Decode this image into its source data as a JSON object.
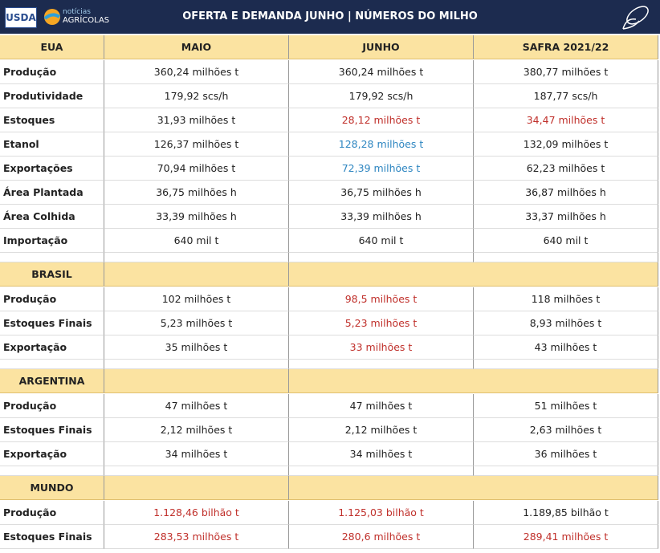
{
  "header": {
    "title": "OFERTA E DEMANDA JUNHO | NÚMEROS DO MILHO",
    "logo_usda": "USDA",
    "logo_na_top": "notícias",
    "logo_na_bottom": "AGRÍCOLAS"
  },
  "columns": [
    "MAIO",
    "JUNHO",
    "SAFRA 2021/22"
  ],
  "sections": [
    {
      "label": "EUA",
      "rows": [
        {
          "label": "Produção",
          "cells": [
            {
              "text": "360,24 milhões t"
            },
            {
              "text": "360,24 milhões t"
            },
            {
              "text": "380,77 milhões t"
            }
          ]
        },
        {
          "label": "Produtividade",
          "cells": [
            {
              "text": "179,92 scs/h"
            },
            {
              "text": "179,92 scs/h"
            },
            {
              "text": "187,77 scs/h"
            }
          ]
        },
        {
          "label": "Estoques",
          "cells": [
            {
              "text": "31,93 milhões t"
            },
            {
              "text": "28,12 milhões t",
              "color": "#c0302b"
            },
            {
              "text": "34,47 milhões t",
              "color": "#c0302b"
            }
          ]
        },
        {
          "label": "Etanol",
          "cells": [
            {
              "text": "126,37 milhões t"
            },
            {
              "text": "128,28 milhões t",
              "color": "#2e86c1"
            },
            {
              "text": "132,09 milhões t"
            }
          ]
        },
        {
          "label": "Exportações",
          "cells": [
            {
              "text": "70,94 milhões t"
            },
            {
              "text": "72,39 milhões t",
              "color": "#2e86c1"
            },
            {
              "text": "62,23 milhões t"
            }
          ]
        },
        {
          "label": "Área Plantada",
          "cells": [
            {
              "text": "36,75 milhões h"
            },
            {
              "text": "36,75 milhões h"
            },
            {
              "text": "36,87 milhões h"
            }
          ]
        },
        {
          "label": "Área Colhida",
          "cells": [
            {
              "text": "33,39 milhões h"
            },
            {
              "text": "33,39 milhões h"
            },
            {
              "text": "33,37 milhões h"
            }
          ]
        },
        {
          "label": "Importação",
          "cells": [
            {
              "text": "640 mil t"
            },
            {
              "text": "640 mil t"
            },
            {
              "text": "640 mil t"
            }
          ]
        }
      ]
    },
    {
      "label": "BRASIL",
      "rows": [
        {
          "label": "Produção",
          "cells": [
            {
              "text": "102 milhões t"
            },
            {
              "text": "98,5 milhões t",
              "color": "#c0302b"
            },
            {
              "text": "118 milhões t"
            }
          ]
        },
        {
          "label": "Estoques Finais",
          "cells": [
            {
              "text": "5,23 milhões t"
            },
            {
              "text": "5,23 milhões t",
              "color": "#c0302b"
            },
            {
              "text": "8,93 milhões t"
            }
          ]
        },
        {
          "label": "Exportação",
          "cells": [
            {
              "text": "35 milhões t"
            },
            {
              "text": "33 milhões t",
              "color": "#c0302b"
            },
            {
              "text": "43 milhões t"
            }
          ]
        }
      ]
    },
    {
      "label": "ARGENTINA",
      "rows": [
        {
          "label": "Produção",
          "cells": [
            {
              "text": "47 milhões t"
            },
            {
              "text": "47 milhões t"
            },
            {
              "text": "51 milhões t"
            }
          ]
        },
        {
          "label": "Estoques Finais",
          "cells": [
            {
              "text": "2,12 milhões t"
            },
            {
              "text": "2,12 milhões t"
            },
            {
              "text": "2,63 milhões t"
            }
          ]
        },
        {
          "label": "Exportação",
          "cells": [
            {
              "text": "34 milhões t"
            },
            {
              "text": "34 milhões t"
            },
            {
              "text": "36 milhões t"
            }
          ]
        }
      ]
    },
    {
      "label": "MUNDO",
      "rows": [
        {
          "label": "Produção",
          "cells": [
            {
              "text": "1.128,46 bilhão t",
              "color": "#c0302b"
            },
            {
              "text": "1.125,03 bilhão t",
              "color": "#c0302b"
            },
            {
              "text": "1.189,85 bilhão t"
            }
          ]
        },
        {
          "label": "Estoques Finais",
          "cells": [
            {
              "text": "283,53 milhões t",
              "color": "#c0302b"
            },
            {
              "text": "280,6 milhões t",
              "color": "#c0302b"
            },
            {
              "text": "289,41 milhões t",
              "color": "#c0302b"
            }
          ]
        }
      ]
    }
  ]
}
